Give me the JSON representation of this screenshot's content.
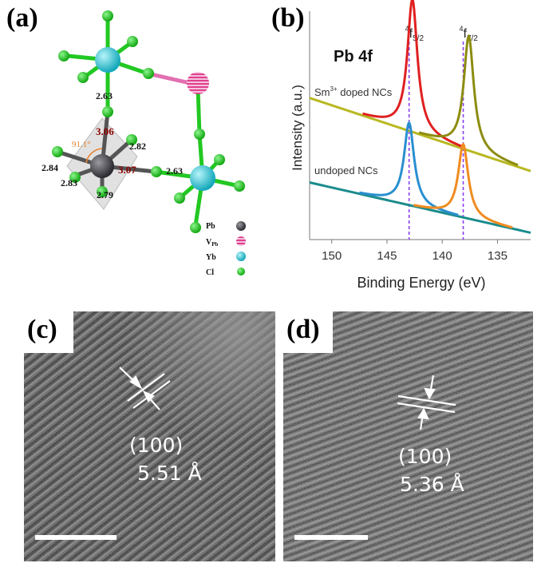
{
  "figure": {
    "panels": [
      {
        "label": "(a)"
      },
      {
        "label": "(b)"
      },
      {
        "label": "(c)"
      },
      {
        "label": "(d)"
      }
    ]
  },
  "structure": {
    "bond_lengths": [
      "2.63",
      "3.06",
      "2.82",
      "2.84",
      "3.07",
      "2.83",
      "2.79",
      "2.63"
    ],
    "angle": "91.1°",
    "legend": [
      {
        "label": "Pb",
        "color": "#505055"
      },
      {
        "label": "V",
        "sub": "Pb",
        "color": "#ec5aa8"
      },
      {
        "label": "Yb",
        "color": "#28c8d8"
      },
      {
        "label": "Cl",
        "color": "#22c822"
      }
    ]
  },
  "chart_data": {
    "type": "line",
    "title": "Pb 4f",
    "xlabel": "Binding Energy (eV)",
    "ylabel": "Intensity (a.u.)",
    "xlim": [
      152,
      132
    ],
    "x_reversed": true,
    "xticks": [
      150,
      145,
      140,
      135
    ],
    "y_ticks_shown": false,
    "peak_markers": [
      {
        "x": 143.0,
        "label_main": "4",
        "label_f": "f",
        "label_sub": "5/2",
        "color": "#8a3cf0",
        "style": "dashed"
      },
      {
        "x": 138.1,
        "label_main": "4",
        "label_f": "f",
        "label_sub": "7/2",
        "color": "#8a3cf0",
        "style": "dashed"
      }
    ],
    "series": [
      {
        "name": "Sm",
        "name_sup": "3+",
        "name_rest": " doped NCs",
        "baseline_start": 0.62,
        "baseline_end": 0.3,
        "peaks": [
          {
            "x": 142.7,
            "height": 0.58,
            "width": 0.55,
            "color": "#e02020"
          },
          {
            "x": 137.6,
            "height": 0.5,
            "width": 0.55,
            "color": "#8c8c10"
          }
        ],
        "colors": [
          "#b8b820",
          "#e02020",
          "#8c8c10"
        ]
      },
      {
        "name": "undoped NCs",
        "baseline_start": 0.25,
        "baseline_end": 0.03,
        "peaks": [
          {
            "x": 143.0,
            "height": 0.36,
            "width": 0.55,
            "color": "#2a8fd0"
          },
          {
            "x": 138.1,
            "height": 0.32,
            "width": 0.55,
            "color": "#f08c20"
          }
        ],
        "colors": [
          "#1b8c8c",
          "#2a8fd0",
          "#f08c20"
        ]
      }
    ]
  },
  "tem": [
    {
      "plane": "(100)",
      "spacing": "5.51 Å"
    },
    {
      "plane": "(100)",
      "spacing": "5.36 Å"
    }
  ]
}
